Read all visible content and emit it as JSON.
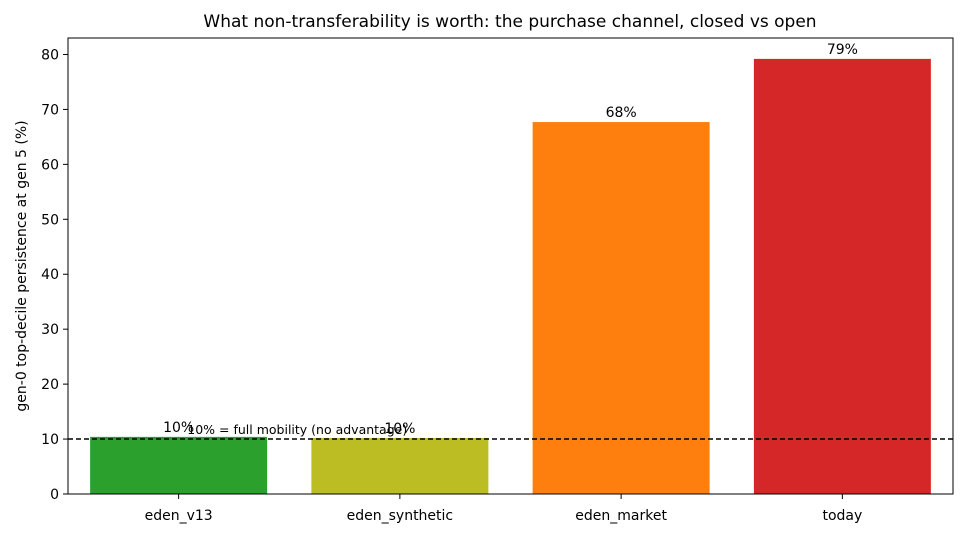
{
  "chart_data": {
    "type": "bar",
    "title": "What non-transferability is worth: the purchase channel, closed vs open",
    "xlabel": "",
    "ylabel": "gen-0 top-decile persistence at gen 5 (%)",
    "categories": [
      "eden_v13",
      "eden_synthetic",
      "eden_market",
      "today"
    ],
    "values": [
      10.4,
      10.2,
      67.7,
      79.2
    ],
    "value_labels": [
      "10%",
      "10%",
      "68%",
      "79%"
    ],
    "colors": [
      "#2ca02c",
      "#bcbd22",
      "#ff7f0e",
      "#d62728"
    ],
    "ylim": [
      0,
      83
    ],
    "yticks": [
      0,
      10,
      20,
      30,
      40,
      50,
      60,
      70,
      80
    ],
    "grid": false,
    "reference_line": {
      "y": 10,
      "style": "dashed",
      "color": "#000000",
      "label": "10% = full mobility (no advantage)"
    }
  }
}
